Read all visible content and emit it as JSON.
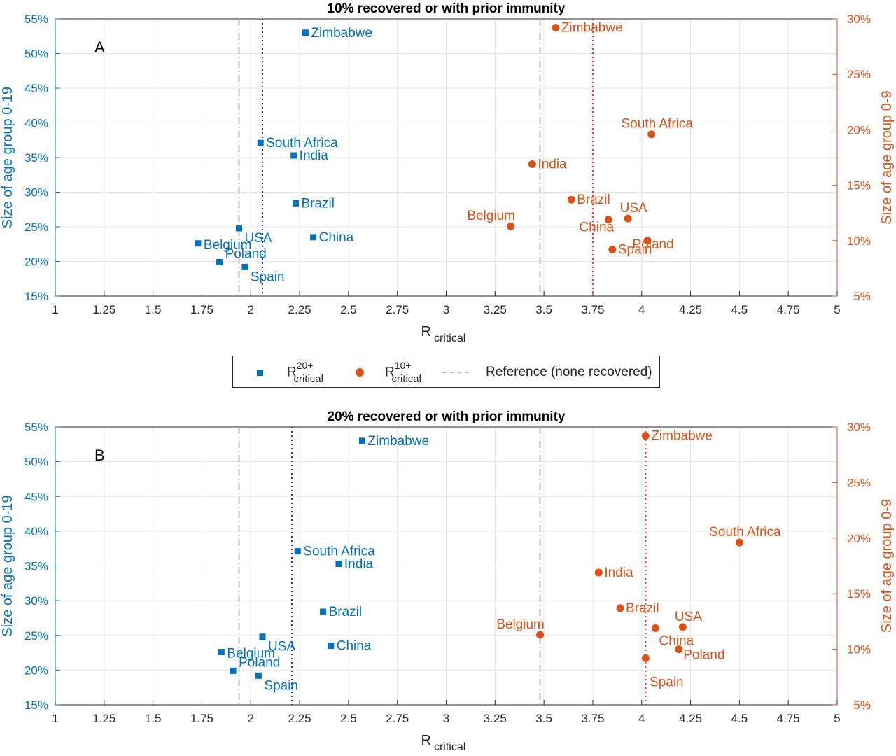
{
  "legend": {
    "series1_main": "R",
    "series1_sup": "20+",
    "series1_sub": "critical",
    "series2_main": "R",
    "series2_sup": "10+",
    "series2_sub": "critical",
    "reference_label": "Reference (none recovered)"
  },
  "colors": {
    "left_series": "#0072BD",
    "right_series": "#D95319",
    "reference_line": "#bbbbbb",
    "left_threshold": "#2525c8",
    "right_threshold": "#e8303a",
    "grid": "#e6e6e6"
  },
  "chart_data": [
    {
      "type": "scatter",
      "panel_label": "A",
      "title": "10% recovered or with prior immunity",
      "xlabel_main": "R",
      "xlabel_sub": "critical",
      "ylabel_left": "Size of age group 0-19",
      "ylabel_right": "Size of age group 0-9",
      "xlim": [
        1,
        5
      ],
      "ylim_left": [
        15,
        55
      ],
      "ylim_right": [
        5,
        30
      ],
      "xticks": [
        "1",
        "1.25",
        "1.5",
        "1.75",
        "2",
        "2.25",
        "2.5",
        "2.75",
        "3",
        "3.25",
        "3.5",
        "3.75",
        "4",
        "4.25",
        "4.5",
        "4.75",
        "5"
      ],
      "yticks_left": [
        "15%",
        "20%",
        "25%",
        "30%",
        "35%",
        "40%",
        "45%",
        "50%",
        "55%"
      ],
      "yticks_right": [
        "5%",
        "10%",
        "15%",
        "20%",
        "25%",
        "30%"
      ],
      "grid": true,
      "reference_lines": {
        "left": 1.94,
        "right": 3.48
      },
      "threshold_lines": {
        "left": 2.06,
        "right": 3.75
      },
      "series_left": [
        {
          "label": "Zimbabwe",
          "x": 2.28,
          "y": 53.0
        },
        {
          "label": "South Africa",
          "x": 2.05,
          "y": 37.1
        },
        {
          "label": "India",
          "x": 2.22,
          "y": 35.3
        },
        {
          "label": "Brazil",
          "x": 2.23,
          "y": 28.4
        },
        {
          "label": "China",
          "x": 2.32,
          "y": 23.5
        },
        {
          "label": "USA",
          "x": 1.94,
          "y": 24.8
        },
        {
          "label": "Belgium",
          "x": 1.73,
          "y": 22.6
        },
        {
          "label": "Poland",
          "x": 1.84,
          "y": 19.9
        },
        {
          "label": "Spain",
          "x": 1.97,
          "y": 19.2
        }
      ],
      "series_right": [
        {
          "label": "Zimbabwe",
          "x": 3.56,
          "y": 29.2
        },
        {
          "label": "South Africa",
          "x": 4.05,
          "y": 19.6
        },
        {
          "label": "India",
          "x": 3.44,
          "y": 16.9
        },
        {
          "label": "Brazil",
          "x": 3.64,
          "y": 13.7
        },
        {
          "label": "USA",
          "x": 3.93,
          "y": 12.0
        },
        {
          "label": "China",
          "x": 3.83,
          "y": 11.9
        },
        {
          "label": "Belgium",
          "x": 3.33,
          "y": 11.3
        },
        {
          "label": "Poland",
          "x": 4.03,
          "y": 10.0
        },
        {
          "label": "Spain",
          "x": 3.85,
          "y": 9.2
        }
      ]
    },
    {
      "type": "scatter",
      "panel_label": "B",
      "title": "20% recovered or with prior immunity",
      "xlabel_main": "R",
      "xlabel_sub": "critical",
      "ylabel_left": "Size of age group 0-19",
      "ylabel_right": "Size of age group 0-9",
      "xlim": [
        1,
        5
      ],
      "ylim_left": [
        15,
        55
      ],
      "ylim_right": [
        5,
        30
      ],
      "xticks": [
        "1",
        "1.25",
        "1.5",
        "1.75",
        "2",
        "2.25",
        "2.5",
        "2.75",
        "3",
        "3.25",
        "3.5",
        "3.75",
        "4",
        "4.25",
        "4.5",
        "4.75",
        "5"
      ],
      "yticks_left": [
        "15%",
        "20%",
        "25%",
        "30%",
        "35%",
        "40%",
        "45%",
        "50%",
        "55%"
      ],
      "yticks_right": [
        "5%",
        "10%",
        "15%",
        "20%",
        "25%",
        "30%"
      ],
      "grid": true,
      "reference_lines": {
        "left": 1.94,
        "right": 3.48
      },
      "threshold_lines": {
        "left": 2.21,
        "right": 4.02
      },
      "series_left": [
        {
          "label": "Zimbabwe",
          "x": 2.57,
          "y": 53.0
        },
        {
          "label": "South Africa",
          "x": 2.24,
          "y": 37.1
        },
        {
          "label": "India",
          "x": 2.45,
          "y": 35.3
        },
        {
          "label": "Brazil",
          "x": 2.37,
          "y": 28.4
        },
        {
          "label": "China",
          "x": 2.41,
          "y": 23.5
        },
        {
          "label": "USA",
          "x": 2.06,
          "y": 24.8
        },
        {
          "label": "Belgium",
          "x": 1.85,
          "y": 22.6
        },
        {
          "label": "Poland",
          "x": 1.91,
          "y": 19.9
        },
        {
          "label": "Spain",
          "x": 2.04,
          "y": 19.2
        }
      ],
      "series_right": [
        {
          "label": "Zimbabwe",
          "x": 4.02,
          "y": 29.2
        },
        {
          "label": "South Africa",
          "x": 4.5,
          "y": 19.6
        },
        {
          "label": "India",
          "x": 3.78,
          "y": 16.9
        },
        {
          "label": "Brazil",
          "x": 3.89,
          "y": 13.7
        },
        {
          "label": "USA",
          "x": 4.21,
          "y": 12.0
        },
        {
          "label": "China",
          "x": 4.07,
          "y": 11.9
        },
        {
          "label": "Belgium",
          "x": 3.48,
          "y": 11.3
        },
        {
          "label": "Poland",
          "x": 4.19,
          "y": 10.0
        },
        {
          "label": "Spain",
          "x": 4.02,
          "y": 9.2
        }
      ]
    }
  ]
}
